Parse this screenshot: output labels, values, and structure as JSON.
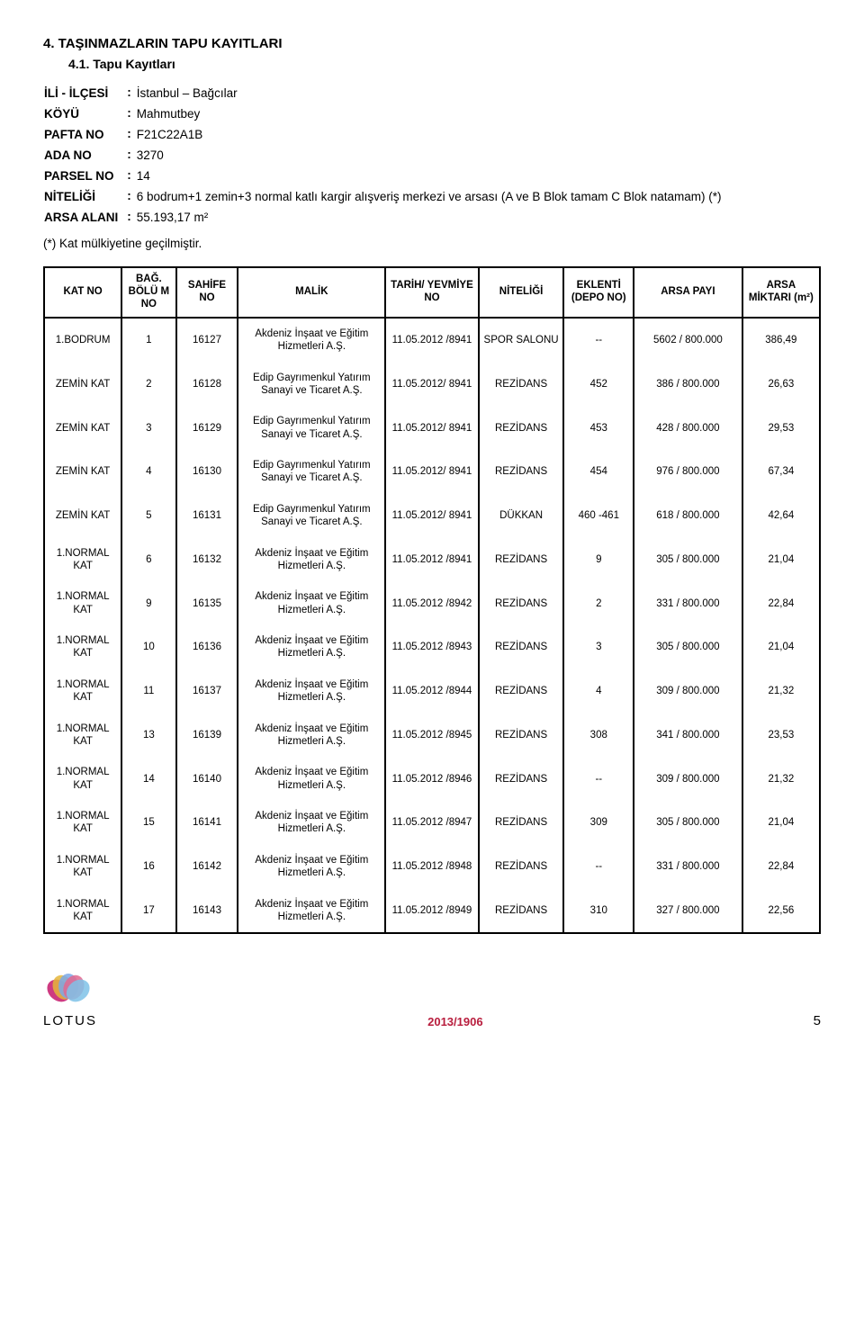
{
  "section_title": "4.  TAŞINMAZLARIN TAPU KAYITLARI",
  "subsection_title": "4.1.  Tapu Kayıtları",
  "kv": [
    {
      "key": "İLİ - İLÇESİ",
      "val": "İstanbul – Bağcılar"
    },
    {
      "key": "KÖYÜ",
      "val": "Mahmutbey"
    },
    {
      "key": "PAFTA NO",
      "val": "F21C22A1B"
    },
    {
      "key": "ADA NO",
      "val": "3270"
    },
    {
      "key": "PARSEL NO",
      "val": "14"
    },
    {
      "key": "NİTELİĞİ",
      "val": "6 bodrum+1 zemin+3 normal katlı kargir alışveriş merkezi ve arsası (A ve B Blok tamam C Blok natamam) (*)"
    },
    {
      "key": "ARSA ALANI",
      "val": "55.193,17 m²"
    }
  ],
  "footnote": "(*) Kat mülkiyetine geçilmiştir.",
  "headers": [
    "KAT NO",
    "BAĞ. BÖLÜ M NO",
    "SAHİFE NO",
    "MALİK",
    "TARİH/ YEVMİYE NO",
    "NİTELİĞİ",
    "EKLENTİ (DEPO NO)",
    "ARSA PAYI",
    "ARSA MİKTARI (m²)"
  ],
  "rows": [
    [
      "1.BODRUM",
      "1",
      "16127",
      "Akdeniz İnşaat ve Eğitim Hizmetleri A.Ş.",
      "11.05.2012 /8941",
      "SPOR SALONU",
      "--",
      "5602 / 800.000",
      "386,49"
    ],
    [
      "ZEMİN KAT",
      "2",
      "16128",
      "Edip Gayrımenkul Yatırım Sanayi ve Ticaret A.Ş.",
      "11.05.2012/ 8941",
      "REZİDANS",
      "452",
      "386 / 800.000",
      "26,63"
    ],
    [
      "ZEMİN KAT",
      "3",
      "16129",
      "Edip Gayrımenkul Yatırım Sanayi ve Ticaret A.Ş.",
      "11.05.2012/ 8941",
      "REZİDANS",
      "453",
      "428 / 800.000",
      "29,53"
    ],
    [
      "ZEMİN KAT",
      "4",
      "16130",
      "Edip Gayrımenkul Yatırım Sanayi ve Ticaret A.Ş.",
      "11.05.2012/ 8941",
      "REZİDANS",
      "454",
      "976 / 800.000",
      "67,34"
    ],
    [
      "ZEMİN KAT",
      "5",
      "16131",
      "Edip Gayrımenkul Yatırım Sanayi ve Ticaret A.Ş.",
      "11.05.2012/ 8941",
      "DÜKKAN",
      "460 -461",
      "618 / 800.000",
      "42,64"
    ],
    [
      "1.NORMAL KAT",
      "6",
      "16132",
      "Akdeniz İnşaat ve Eğitim Hizmetleri A.Ş.",
      "11.05.2012 /8941",
      "REZİDANS",
      "9",
      "305 / 800.000",
      "21,04"
    ],
    [
      "1.NORMAL KAT",
      "9",
      "16135",
      "Akdeniz İnşaat ve Eğitim Hizmetleri A.Ş.",
      "11.05.2012 /8942",
      "REZİDANS",
      "2",
      "331 / 800.000",
      "22,84"
    ],
    [
      "1.NORMAL KAT",
      "10",
      "16136",
      "Akdeniz İnşaat ve Eğitim Hizmetleri A.Ş.",
      "11.05.2012 /8943",
      "REZİDANS",
      "3",
      "305 / 800.000",
      "21,04"
    ],
    [
      "1.NORMAL KAT",
      "11",
      "16137",
      "Akdeniz İnşaat ve Eğitim Hizmetleri A.Ş.",
      "11.05.2012 /8944",
      "REZİDANS",
      "4",
      "309 / 800.000",
      "21,32"
    ],
    [
      "1.NORMAL KAT",
      "13",
      "16139",
      "Akdeniz İnşaat ve Eğitim Hizmetleri A.Ş.",
      "11.05.2012 /8945",
      "REZİDANS",
      "308",
      "341 / 800.000",
      "23,53"
    ],
    [
      "1.NORMAL KAT",
      "14",
      "16140",
      "Akdeniz İnşaat ve Eğitim Hizmetleri A.Ş.",
      "11.05.2012 /8946",
      "REZİDANS",
      "--",
      "309 / 800.000",
      "21,32"
    ],
    [
      "1.NORMAL KAT",
      "15",
      "16141",
      "Akdeniz İnşaat ve Eğitim Hizmetleri A.Ş.",
      "11.05.2012 /8947",
      "REZİDANS",
      "309",
      "305 / 800.000",
      "21,04"
    ],
    [
      "1.NORMAL KAT",
      "16",
      "16142",
      "Akdeniz İnşaat ve Eğitim Hizmetleri A.Ş.",
      "11.05.2012 /8948",
      "REZİDANS",
      "--",
      "331 / 800.000",
      "22,84"
    ],
    [
      "1.NORMAL KAT",
      "17",
      "16143",
      "Akdeniz İnşaat ve Eğitim Hizmetleri A.Ş.",
      "11.05.2012 /8949",
      "REZİDANS",
      "310",
      "327 / 800.000",
      "22,56"
    ]
  ],
  "col_widths": [
    "10%",
    "7%",
    "8%",
    "19%",
    "12%",
    "11%",
    "9%",
    "14%",
    "10%"
  ],
  "logo_text": "LOTUS",
  "doc_id": "2013/1906",
  "page_no": "5",
  "petal_colors": [
    "#c6176b",
    "#e4b63b",
    "#7aa8e8",
    "#e2678f",
    "#7fc2e8"
  ]
}
